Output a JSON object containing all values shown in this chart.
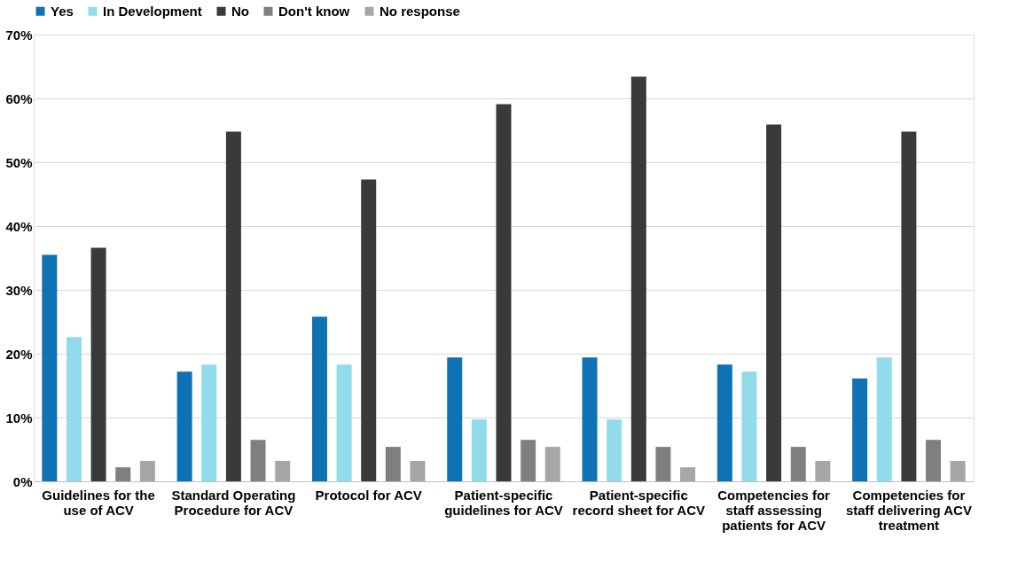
{
  "chart_data": {
    "type": "bar",
    "categories": [
      "Guidelines for the use of ACV",
      "Standard Operating Procedure for ACV",
      "Protocol for ACV",
      "Patient-specific guidelines for ACV",
      "Patient-specific record sheet for ACV",
      "Competencies for staff assessing patients for ACV",
      "Competencies for staff delivering ACV treatment"
    ],
    "series": [
      {
        "name": "Yes",
        "color": "#0e72b5",
        "values": [
          35.5,
          17.2,
          25.8,
          19.4,
          19.4,
          18.3,
          16.1
        ]
      },
      {
        "name": "In Development",
        "color": "#92dbeb",
        "values": [
          22.6,
          18.3,
          18.3,
          9.7,
          9.7,
          17.2,
          19.4
        ]
      },
      {
        "name": "No",
        "color": "#3a3a3a",
        "values": [
          36.6,
          54.8,
          47.3,
          59.1,
          63.4,
          55.9,
          54.8
        ]
      },
      {
        "name": "Don't know",
        "color": "#7f7f7f",
        "values": [
          2.2,
          6.5,
          5.4,
          6.5,
          5.4,
          5.4,
          6.5
        ]
      },
      {
        "name": "No response",
        "color": "#a6a6a6",
        "values": [
          3.2,
          3.2,
          3.2,
          5.4,
          2.2,
          3.2,
          3.2
        ]
      }
    ],
    "ylim": [
      0,
      70
    ],
    "yticks": [
      {
        "value": 0,
        "label": "0%"
      },
      {
        "value": 10,
        "label": "10%"
      },
      {
        "value": 20,
        "label": "20%"
      },
      {
        "value": 30,
        "label": "30%"
      },
      {
        "value": 40,
        "label": "40%"
      },
      {
        "value": 50,
        "label": "50%"
      },
      {
        "value": 60,
        "label": "60%"
      },
      {
        "value": 70,
        "label": "70%"
      }
    ],
    "grid": "y",
    "legend": "top"
  }
}
